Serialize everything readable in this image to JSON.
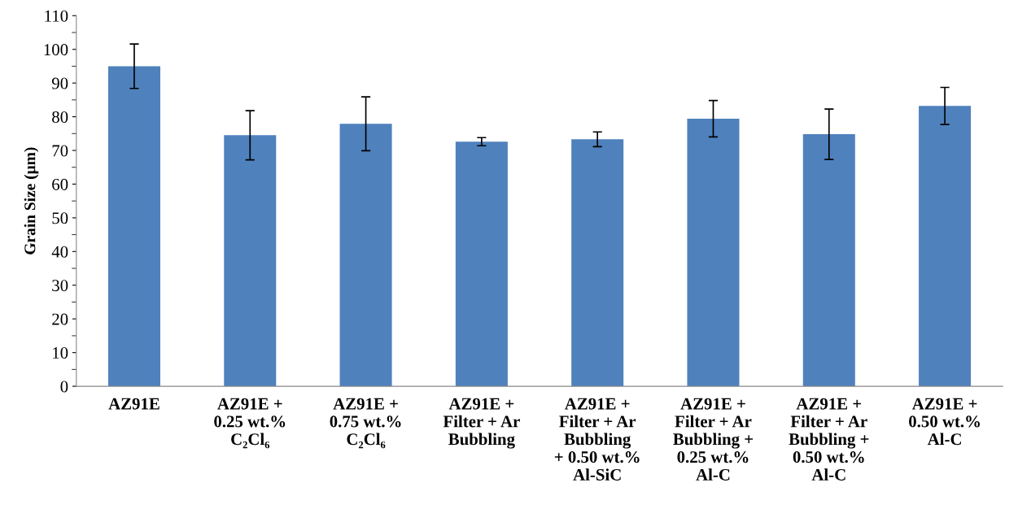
{
  "chart_data": {
    "type": "bar",
    "ylabel": "Grain Size (μm)",
    "categories": [
      "AZ91E",
      "AZ91E +\n0.25 wt.%\nC₂Cl₆",
      "AZ91E +\n0.75 wt.%\nC₂Cl₆",
      "AZ91E +\nFilter + Ar\nBubbling",
      "AZ91E +\nFilter + Ar\nBubbling\n+ 0.50 wt.%\nAl-SiC",
      "AZ91E +\nFilter + Ar\nBubbling +\n0.25 wt.%\nAl-C",
      "AZ91E +\nFilter + Ar\nBubbling +\n0.50 wt.%\nAl-C",
      "AZ91E +\n0.50 wt.%\nAl-C"
    ],
    "values": [
      95,
      74.5,
      77.9,
      72.6,
      73.3,
      79.4,
      74.8,
      83.2
    ],
    "errors": [
      6.6,
      7.3,
      8,
      1.2,
      2.2,
      5.4,
      7.5,
      5.5
    ],
    "color": "#4f81bd",
    "ylim": [
      0,
      110
    ],
    "yticks": [
      0,
      10,
      20,
      30,
      40,
      50,
      60,
      70,
      80,
      90,
      100,
      110
    ],
    "grid": false,
    "legend": false
  }
}
